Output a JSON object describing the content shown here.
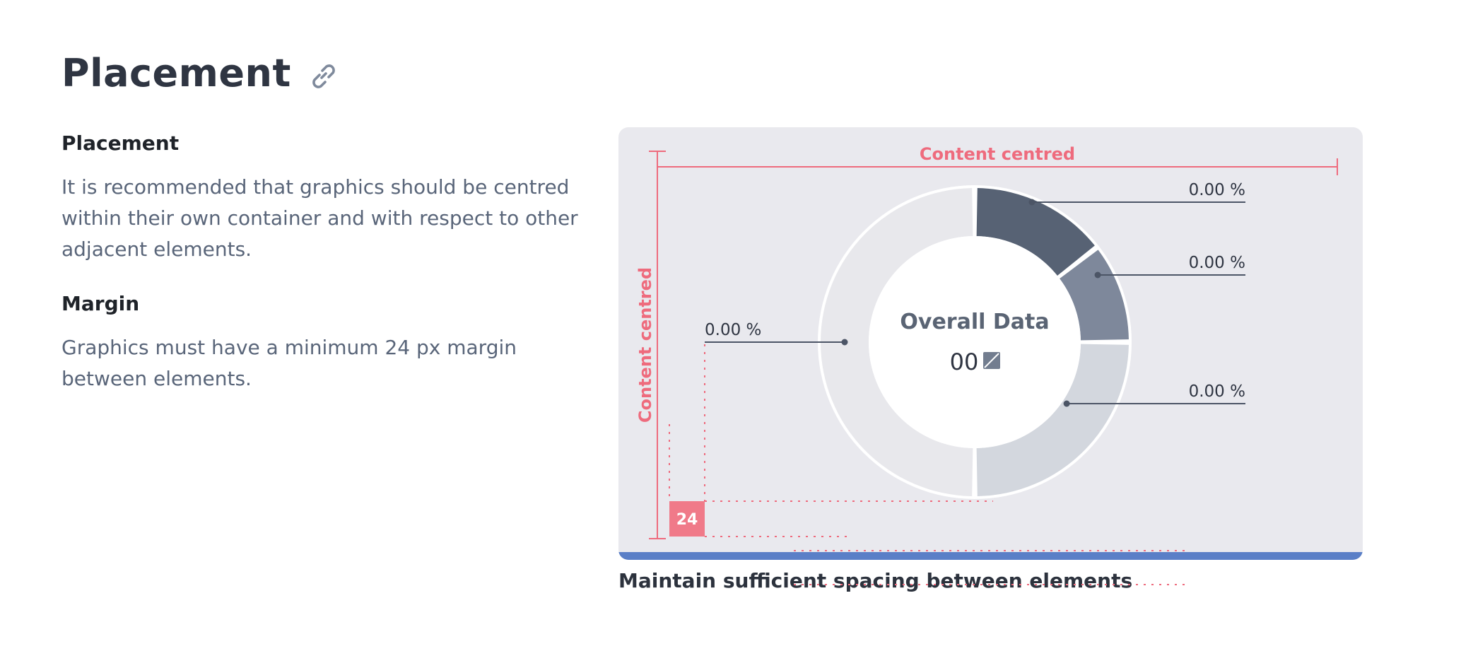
{
  "header": {
    "title": "Placement",
    "link_icon": "link-icon"
  },
  "sections": [
    {
      "heading": "Placement",
      "body": "It is recommended that graphics should be centred within their own container and with respect to other adjacent elements."
    },
    {
      "heading": "Margin",
      "body": "Graphics must have a minimum 24 px margin between elements."
    }
  ],
  "figure": {
    "guide_top_label": "Content centred",
    "guide_side_label": "Content centred",
    "margin_badge": "24",
    "caption": "Maintain sufficient spacing between elements",
    "colors": {
      "guide": "#ee6b7d",
      "badge": "#f07a89",
      "card_background": "#e9e9ee",
      "bottom_bar": "#5a7fc7",
      "slice_dark": "#576274",
      "slice_mid": "#7e889b",
      "slice_light": "#d3d7de",
      "slice_empty": "#e8e8ec"
    }
  },
  "chart_data": {
    "type": "pie",
    "title": "Overall Data",
    "center_value": "00",
    "center_icon": "diagonal-square-icon",
    "slices": [
      {
        "value": 14.5,
        "label": "0.00 %",
        "color": "#576274"
      },
      {
        "value": 10.5,
        "label": "0.00 %",
        "color": "#7e889b"
      },
      {
        "value": 25,
        "label": "0.00 %",
        "color": "#d3d7de"
      },
      {
        "value": 50,
        "label": "0.00 %",
        "color": "#e8e8ec"
      }
    ]
  }
}
